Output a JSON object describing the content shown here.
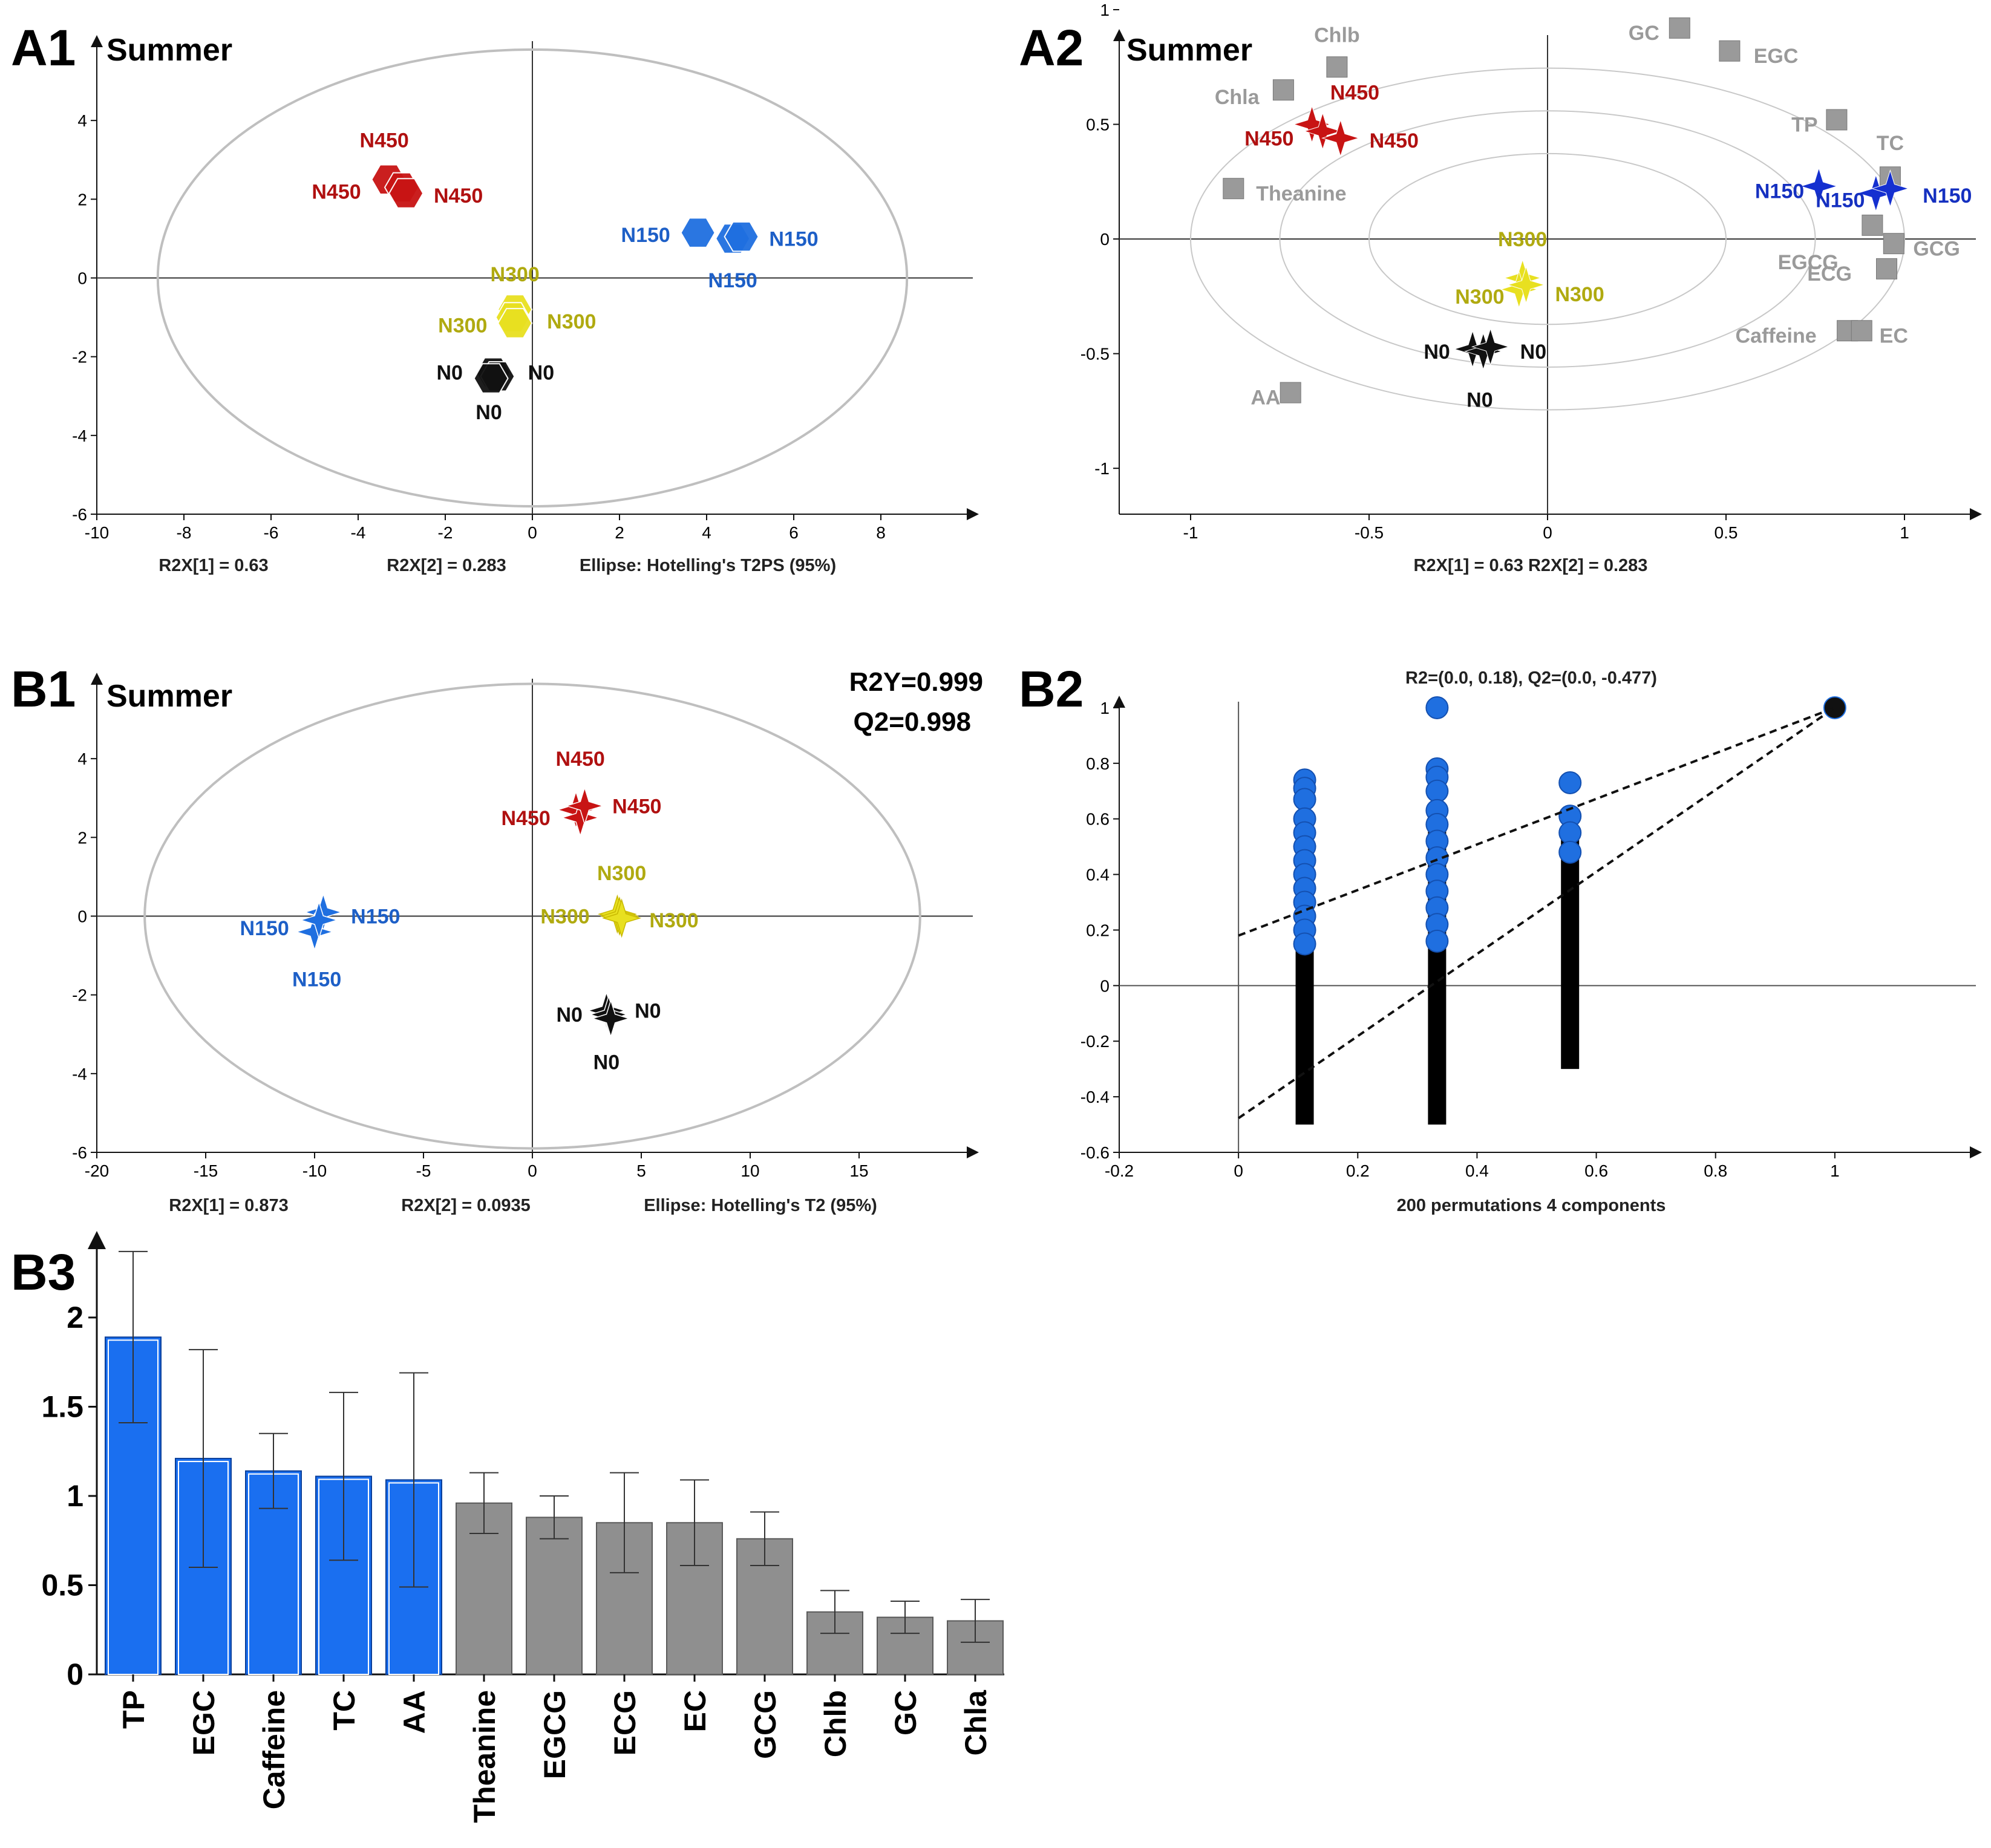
{
  "colors": {
    "N0": "#111111",
    "N150": "#1f6fe0",
    "N300": "#e8e020",
    "N450": "#c81414",
    "N300_text": "#b0aa10",
    "N450_text": "#b01010",
    "N150_text": "#1d5fc7",
    "variable": "#9a9a9a",
    "vip_high": "#1a6ff0",
    "vip_low": "#8f8f8f"
  },
  "chart_data": [
    {
      "panel": "A1",
      "type": "scatter",
      "title": "Summer",
      "xlim": [
        -10,
        10
      ],
      "ylim": [
        -6,
        6
      ],
      "xticks": [
        "-10",
        "-8",
        "-6",
        "-4",
        "-2",
        "0",
        "2",
        "4",
        "6",
        "8"
      ],
      "yticks": [
        "-6",
        "-4",
        "-2",
        "0",
        "2",
        "4"
      ],
      "ellipse_semi_axes": [
        8.6,
        5.8
      ],
      "captions": [
        "R2X[1] = 0.63",
        "R2X[2] = 0.283",
        "Ellipse: Hotelling's T2PS (95%)"
      ],
      "points": [
        {
          "group": "N450",
          "x": -3.3,
          "y": 2.5,
          "label": "N450",
          "lx": -3.4,
          "ly": 3.5
        },
        {
          "group": "N450",
          "x": -3.0,
          "y": 2.3,
          "label": "N450",
          "lx": -4.5,
          "ly": 2.2
        },
        {
          "group": "N450",
          "x": -2.9,
          "y": 2.15,
          "label": "N450",
          "lx": -1.7,
          "ly": 2.1
        },
        {
          "group": "N150",
          "x": 3.8,
          "y": 1.15,
          "label": "N150",
          "lx": 2.6,
          "ly": 1.1
        },
        {
          "group": "N150",
          "x": 4.6,
          "y": 1.0,
          "label": "N150",
          "lx": 6.0,
          "ly": 1.0
        },
        {
          "group": "N150",
          "x": 4.8,
          "y": 1.05,
          "label": "N150",
          "lx": 4.6,
          "ly": -0.05
        },
        {
          "group": "N300",
          "x": -0.4,
          "y": -0.8,
          "label": "N300",
          "lx": -0.4,
          "ly": 0.1
        },
        {
          "group": "N300",
          "x": -0.45,
          "y": -1.0,
          "label": "N300",
          "lx": -1.6,
          "ly": -1.2
        },
        {
          "group": "N300",
          "x": -0.4,
          "y": -1.15,
          "label": "N300",
          "lx": 0.9,
          "ly": -1.1
        },
        {
          "group": "N0",
          "x": -0.9,
          "y": -2.4,
          "label": "N0",
          "lx": -1.9,
          "ly": -2.4
        },
        {
          "group": "N0",
          "x": -0.8,
          "y": -2.5,
          "label": "N0",
          "lx": 0.2,
          "ly": -2.4
        },
        {
          "group": "N0",
          "x": -0.95,
          "y": -2.55,
          "label": "N0",
          "lx": -1.0,
          "ly": -3.4
        }
      ]
    },
    {
      "panel": "A2",
      "type": "scatter",
      "title": "Summer",
      "xlim": [
        -1.2,
        1.2
      ],
      "ylim": [
        -1.2,
        1.0
      ],
      "xticks": [
        "-1",
        "-0.5",
        "0",
        "0.5",
        "1"
      ],
      "yticks": [
        "-1",
        "-0.5",
        "0",
        "0.5",
        "1"
      ],
      "ellipse_radii": [
        1.0,
        0.75,
        0.5
      ],
      "captions": [
        "R2X[1] = 0.63  R2X[2] = 0.283"
      ],
      "variables": [
        {
          "name": "GC",
          "x": 0.37,
          "y": 0.92,
          "lx": 0.27,
          "ly": 0.9
        },
        {
          "name": "EGC",
          "x": 0.51,
          "y": 0.82,
          "lx": 0.64,
          "ly": 0.8
        },
        {
          "name": "Chlb",
          "x": -0.59,
          "y": 0.75,
          "lx": -0.59,
          "ly": 0.89
        },
        {
          "name": "Chla",
          "x": -0.74,
          "y": 0.65,
          "lx": -0.87,
          "ly": 0.62
        },
        {
          "name": "TP",
          "x": 0.81,
          "y": 0.52,
          "lx": 0.72,
          "ly": 0.5
        },
        {
          "name": "TC",
          "x": 0.96,
          "y": 0.27,
          "lx": 0.96,
          "ly": 0.42
        },
        {
          "name": "Theanine",
          "x": -0.88,
          "y": 0.22,
          "lx": -0.69,
          "ly": 0.2
        },
        {
          "name": "EGCG",
          "x": 0.91,
          "y": 0.06,
          "lx": 0.73,
          "ly": -0.1
        },
        {
          "name": "GCG",
          "x": 0.97,
          "y": -0.02,
          "lx": 1.09,
          "ly": -0.04
        },
        {
          "name": "ECG",
          "x": 0.95,
          "y": -0.13,
          "lx": 0.79,
          "ly": -0.15
        },
        {
          "name": "Caffeine",
          "x": 0.84,
          "y": -0.4,
          "lx": 0.64,
          "ly": -0.42
        },
        {
          "name": "EC",
          "x": 0.88,
          "y": -0.4,
          "lx": 0.97,
          "ly": -0.42
        },
        {
          "name": "AA",
          "x": -0.72,
          "y": -0.67,
          "lx": -0.79,
          "ly": -0.69
        }
      ],
      "points": [
        {
          "group": "N450",
          "x": -0.66,
          "y": 0.5,
          "label": "N450",
          "lx": -0.54,
          "ly": 0.64
        },
        {
          "group": "N450",
          "x": -0.63,
          "y": 0.47,
          "label": "N450",
          "lx": -0.78,
          "ly": 0.44
        },
        {
          "group": "N450",
          "x": -0.58,
          "y": 0.44,
          "label": "N450",
          "lx": -0.43,
          "ly": 0.43
        },
        {
          "group": "N150",
          "x": 0.76,
          "y": 0.23,
          "label": "N150",
          "lx": 0.65,
          "ly": 0.21
        },
        {
          "group": "N150",
          "x": 0.92,
          "y": 0.2,
          "label": "N150",
          "lx": 0.82,
          "ly": 0.17
        },
        {
          "group": "N150",
          "x": 0.96,
          "y": 0.22,
          "label": "N150",
          "lx": 1.12,
          "ly": 0.19
        },
        {
          "group": "N300",
          "x": -0.07,
          "y": -0.17,
          "label": "N300",
          "lx": -0.07,
          "ly": 0.0
        },
        {
          "group": "N300",
          "x": -0.08,
          "y": -0.22,
          "label": "N300",
          "lx": -0.19,
          "ly": -0.25
        },
        {
          "group": "N300",
          "x": -0.06,
          "y": -0.2,
          "label": "N300",
          "lx": 0.09,
          "ly": -0.24
        },
        {
          "group": "N0",
          "x": -0.21,
          "y": -0.48,
          "label": "N0",
          "lx": -0.31,
          "ly": -0.49
        },
        {
          "group": "N0",
          "x": -0.18,
          "y": -0.49,
          "label": "N0",
          "lx": -0.04,
          "ly": -0.49
        },
        {
          "group": "N0",
          "x": -0.16,
          "y": -0.47,
          "label": "N0",
          "lx": -0.19,
          "ly": -0.7
        }
      ]
    },
    {
      "panel": "B1",
      "type": "scatter",
      "title": "Summer",
      "stats": [
        "R2Y=0.999",
        "Q2=0.998"
      ],
      "xlim": [
        -20,
        20
      ],
      "ylim": [
        -6,
        6
      ],
      "xticks": [
        "-20",
        "-15",
        "-10",
        "-5",
        "0",
        "5",
        "10",
        "15"
      ],
      "yticks": [
        "-6",
        "-4",
        "-2",
        "0",
        "2",
        "4"
      ],
      "ellipse_semi_axes": [
        17.8,
        5.9
      ],
      "captions": [
        "R2X[1] = 0.873",
        "R2X[2] = 0.0935",
        "Ellipse: Hotelling's T2 (95%)"
      ],
      "points": [
        {
          "group": "N450",
          "x": 2.0,
          "y": 2.7,
          "label": "N450",
          "lx": 2.2,
          "ly": 4.0
        },
        {
          "group": "N450",
          "x": 2.2,
          "y": 2.5,
          "label": "N450",
          "lx": -0.3,
          "ly": 2.5
        },
        {
          "group": "N450",
          "x": 2.4,
          "y": 2.8,
          "label": "N450",
          "lx": 4.8,
          "ly": 2.8
        },
        {
          "group": "N150",
          "x": -9.6,
          "y": 0.1,
          "label": "N150",
          "lx": -12.3,
          "ly": -0.3
        },
        {
          "group": "N150",
          "x": -10.0,
          "y": -0.4,
          "label": "N150",
          "lx": -7.2,
          "ly": 0.0
        },
        {
          "group": "N150",
          "x": -9.8,
          "y": -0.1,
          "label": "N150",
          "lx": -9.9,
          "ly": -1.6
        },
        {
          "group": "N300",
          "x": 3.9,
          "y": 0.05,
          "label": "N300",
          "lx": 4.1,
          "ly": 1.1
        },
        {
          "group": "N300",
          "x": 4.0,
          "y": 0.0,
          "label": "N300",
          "lx": 1.5,
          "ly": 0.0
        },
        {
          "group": "N300",
          "x": 4.1,
          "y": -0.05,
          "label": "N300",
          "lx": 6.5,
          "ly": -0.1
        },
        {
          "group": "N0",
          "x": 3.4,
          "y": -2.4,
          "label": "N0",
          "lx": 1.7,
          "ly": -2.5
        },
        {
          "group": "N0",
          "x": 3.5,
          "y": -2.5,
          "label": "N0",
          "lx": 5.3,
          "ly": -2.4
        },
        {
          "group": "N0",
          "x": 3.6,
          "y": -2.6,
          "label": "N0",
          "lx": 3.4,
          "ly": -3.7
        }
      ]
    },
    {
      "panel": "B2",
      "type": "scatter",
      "title": "R2=(0.0, 0.18), Q2=(0.0, -0.477)",
      "xlabel": "200 permutations 4 components",
      "xlim": [
        -0.2,
        1.2
      ],
      "ylim": [
        -0.6,
        1.1
      ],
      "xticks": [
        "-0.2",
        "0",
        "0.2",
        "0.4",
        "0.6",
        "0.8",
        "1"
      ],
      "yticks": [
        "-0.6",
        "-0.4",
        "-0.2",
        "0",
        "0.2",
        "0.4",
        "0.6",
        "0.8",
        "1"
      ],
      "lines": [
        {
          "name": "R2 regression",
          "x": [
            0,
            1
          ],
          "y": [
            0.18,
            1.0
          ]
        },
        {
          "name": "Q2 regression",
          "x": [
            0,
            1
          ],
          "y": [
            -0.477,
            1.0
          ]
        }
      ],
      "q2_ranges": [
        {
          "x": 0.111,
          "min": -0.5,
          "max": 0.5
        },
        {
          "x": 0.333,
          "min": -0.5,
          "max": 0.65
        },
        {
          "x": 0.556,
          "min": -0.3,
          "max": 0.55
        }
      ],
      "r2_points": [
        {
          "x": 0.111,
          "values": [
            0.74,
            0.71,
            0.67,
            0.6,
            0.55,
            0.5,
            0.45,
            0.4,
            0.35,
            0.3,
            0.25,
            0.2,
            0.15
          ]
        },
        {
          "x": 0.333,
          "values": [
            1.0,
            0.78,
            0.75,
            0.7,
            0.63,
            0.58,
            0.52,
            0.46,
            0.4,
            0.34,
            0.28,
            0.22,
            0.16
          ]
        },
        {
          "x": 0.556,
          "values": [
            0.73,
            0.61,
            0.55,
            0.48
          ]
        },
        {
          "x": 1.0,
          "values": [
            1.0
          ]
        }
      ]
    },
    {
      "panel": "B3",
      "type": "bar",
      "ylim": [
        0,
        2.4
      ],
      "yticks": [
        "0",
        "0.5",
        "1",
        "1.5",
        "2"
      ],
      "categories": [
        "TP",
        "EGC",
        "Caffeine",
        "TC",
        "AA",
        "Theanine",
        "EGCG",
        "ECG",
        "EC",
        "GCG",
        "Chlb",
        "GC",
        "Chla"
      ],
      "values": [
        1.89,
        1.21,
        1.14,
        1.11,
        1.09,
        0.96,
        0.88,
        0.85,
        0.85,
        0.76,
        0.35,
        0.32,
        0.3
      ],
      "errors": [
        0.48,
        0.61,
        0.21,
        0.47,
        0.6,
        0.17,
        0.12,
        0.28,
        0.24,
        0.15,
        0.12,
        0.09,
        0.12
      ],
      "highlight_count": 5
    }
  ],
  "panel_labels": {
    "A1": "A1",
    "A2": "A2",
    "B1": "B1",
    "B2": "B2",
    "B3": "B3"
  }
}
